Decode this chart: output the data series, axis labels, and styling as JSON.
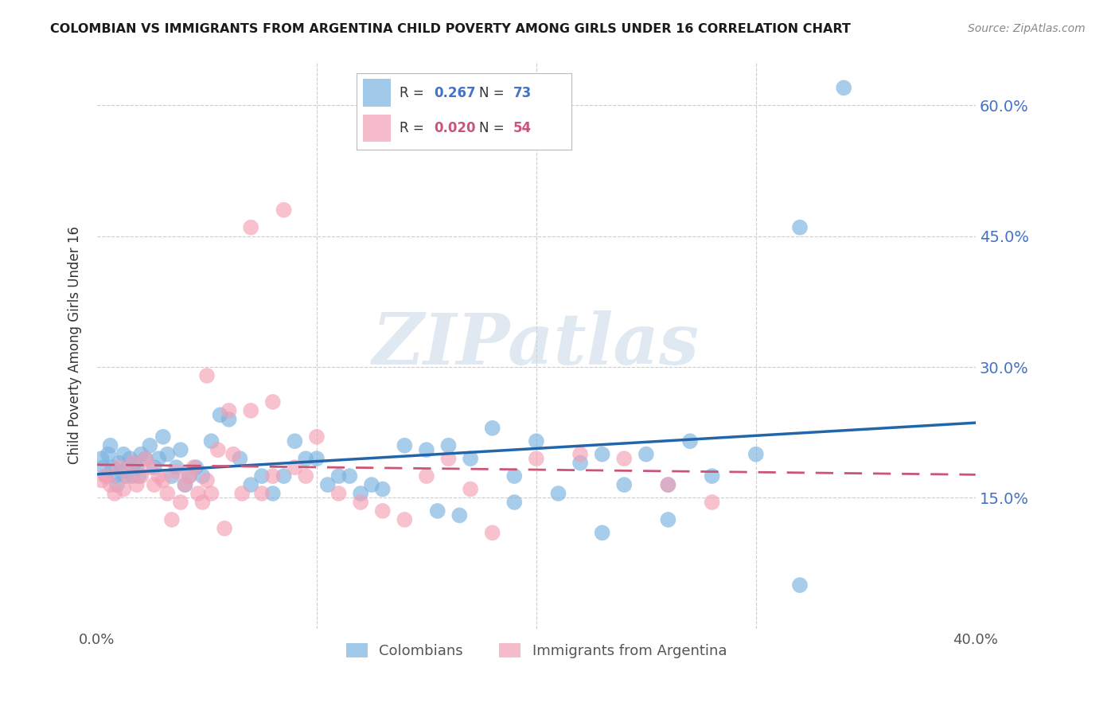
{
  "title": "COLOMBIAN VS IMMIGRANTS FROM ARGENTINA CHILD POVERTY AMONG GIRLS UNDER 16 CORRELATION CHART",
  "source": "Source: ZipAtlas.com",
  "ylabel": "Child Poverty Among Girls Under 16",
  "xlim": [
    0.0,
    0.4
  ],
  "ylim": [
    0.0,
    0.65
  ],
  "xtick_positions": [
    0.0,
    0.05,
    0.1,
    0.15,
    0.2,
    0.25,
    0.3,
    0.35,
    0.4
  ],
  "xtick_labels": [
    "0.0%",
    "",
    "",
    "",
    "",
    "",
    "",
    "",
    "40.0%"
  ],
  "ytick_positions": [
    0.15,
    0.3,
    0.45,
    0.6
  ],
  "right_ytick_labels": [
    "15.0%",
    "30.0%",
    "45.0%",
    "60.0%"
  ],
  "colombian_color": "#7ab3e0",
  "argentina_color": "#f4a0b5",
  "colombian_line_color": "#2266aa",
  "argentina_line_color": "#cc5577",
  "colombian_R": 0.267,
  "colombian_N": 73,
  "argentina_R": 0.02,
  "argentina_N": 54,
  "legend_label_1": "Colombians",
  "legend_label_2": "Immigrants from Argentina",
  "watermark": "ZIPatlas",
  "background_color": "#ffffff",
  "grid_color": "#cccccc",
  "col_scatter_x": [
    0.002,
    0.003,
    0.004,
    0.005,
    0.006,
    0.007,
    0.008,
    0.009,
    0.01,
    0.011,
    0.012,
    0.013,
    0.014,
    0.015,
    0.016,
    0.017,
    0.018,
    0.019,
    0.02,
    0.022,
    0.024,
    0.026,
    0.028,
    0.03,
    0.032,
    0.034,
    0.036,
    0.038,
    0.04,
    0.042,
    0.045,
    0.048,
    0.052,
    0.056,
    0.06,
    0.065,
    0.07,
    0.075,
    0.08,
    0.085,
    0.09,
    0.095,
    0.1,
    0.105,
    0.11,
    0.115,
    0.12,
    0.125,
    0.13,
    0.14,
    0.15,
    0.16,
    0.17,
    0.18,
    0.19,
    0.2,
    0.21,
    0.22,
    0.23,
    0.24,
    0.25,
    0.26,
    0.27,
    0.28,
    0.3,
    0.32,
    0.34,
    0.26,
    0.23,
    0.19,
    0.155,
    0.165,
    0.32
  ],
  "col_scatter_y": [
    0.195,
    0.185,
    0.175,
    0.2,
    0.21,
    0.185,
    0.175,
    0.165,
    0.19,
    0.18,
    0.2,
    0.175,
    0.185,
    0.195,
    0.175,
    0.19,
    0.185,
    0.175,
    0.2,
    0.195,
    0.21,
    0.185,
    0.195,
    0.22,
    0.2,
    0.175,
    0.185,
    0.205,
    0.165,
    0.175,
    0.185,
    0.175,
    0.215,
    0.245,
    0.24,
    0.195,
    0.165,
    0.175,
    0.155,
    0.175,
    0.215,
    0.195,
    0.195,
    0.165,
    0.175,
    0.175,
    0.155,
    0.165,
    0.16,
    0.21,
    0.205,
    0.21,
    0.195,
    0.23,
    0.175,
    0.215,
    0.155,
    0.19,
    0.2,
    0.165,
    0.2,
    0.125,
    0.215,
    0.175,
    0.2,
    0.46,
    0.62,
    0.165,
    0.11,
    0.145,
    0.135,
    0.13,
    0.05
  ],
  "arg_scatter_x": [
    0.002,
    0.004,
    0.006,
    0.008,
    0.01,
    0.012,
    0.014,
    0.016,
    0.018,
    0.02,
    0.022,
    0.024,
    0.026,
    0.028,
    0.03,
    0.032,
    0.034,
    0.036,
    0.038,
    0.04,
    0.042,
    0.044,
    0.046,
    0.048,
    0.05,
    0.052,
    0.055,
    0.058,
    0.062,
    0.066,
    0.07,
    0.075,
    0.08,
    0.085,
    0.09,
    0.095,
    0.1,
    0.11,
    0.12,
    0.13,
    0.14,
    0.15,
    0.16,
    0.17,
    0.18,
    0.2,
    0.22,
    0.24,
    0.26,
    0.28,
    0.05,
    0.06,
    0.07,
    0.08
  ],
  "arg_scatter_y": [
    0.17,
    0.175,
    0.165,
    0.155,
    0.185,
    0.16,
    0.175,
    0.19,
    0.165,
    0.175,
    0.195,
    0.185,
    0.165,
    0.175,
    0.17,
    0.155,
    0.125,
    0.18,
    0.145,
    0.165,
    0.175,
    0.185,
    0.155,
    0.145,
    0.17,
    0.155,
    0.205,
    0.115,
    0.2,
    0.155,
    0.46,
    0.155,
    0.175,
    0.48,
    0.185,
    0.175,
    0.22,
    0.155,
    0.145,
    0.135,
    0.125,
    0.175,
    0.195,
    0.16,
    0.11,
    0.195,
    0.2,
    0.195,
    0.165,
    0.145,
    0.29,
    0.25,
    0.25,
    0.26
  ]
}
